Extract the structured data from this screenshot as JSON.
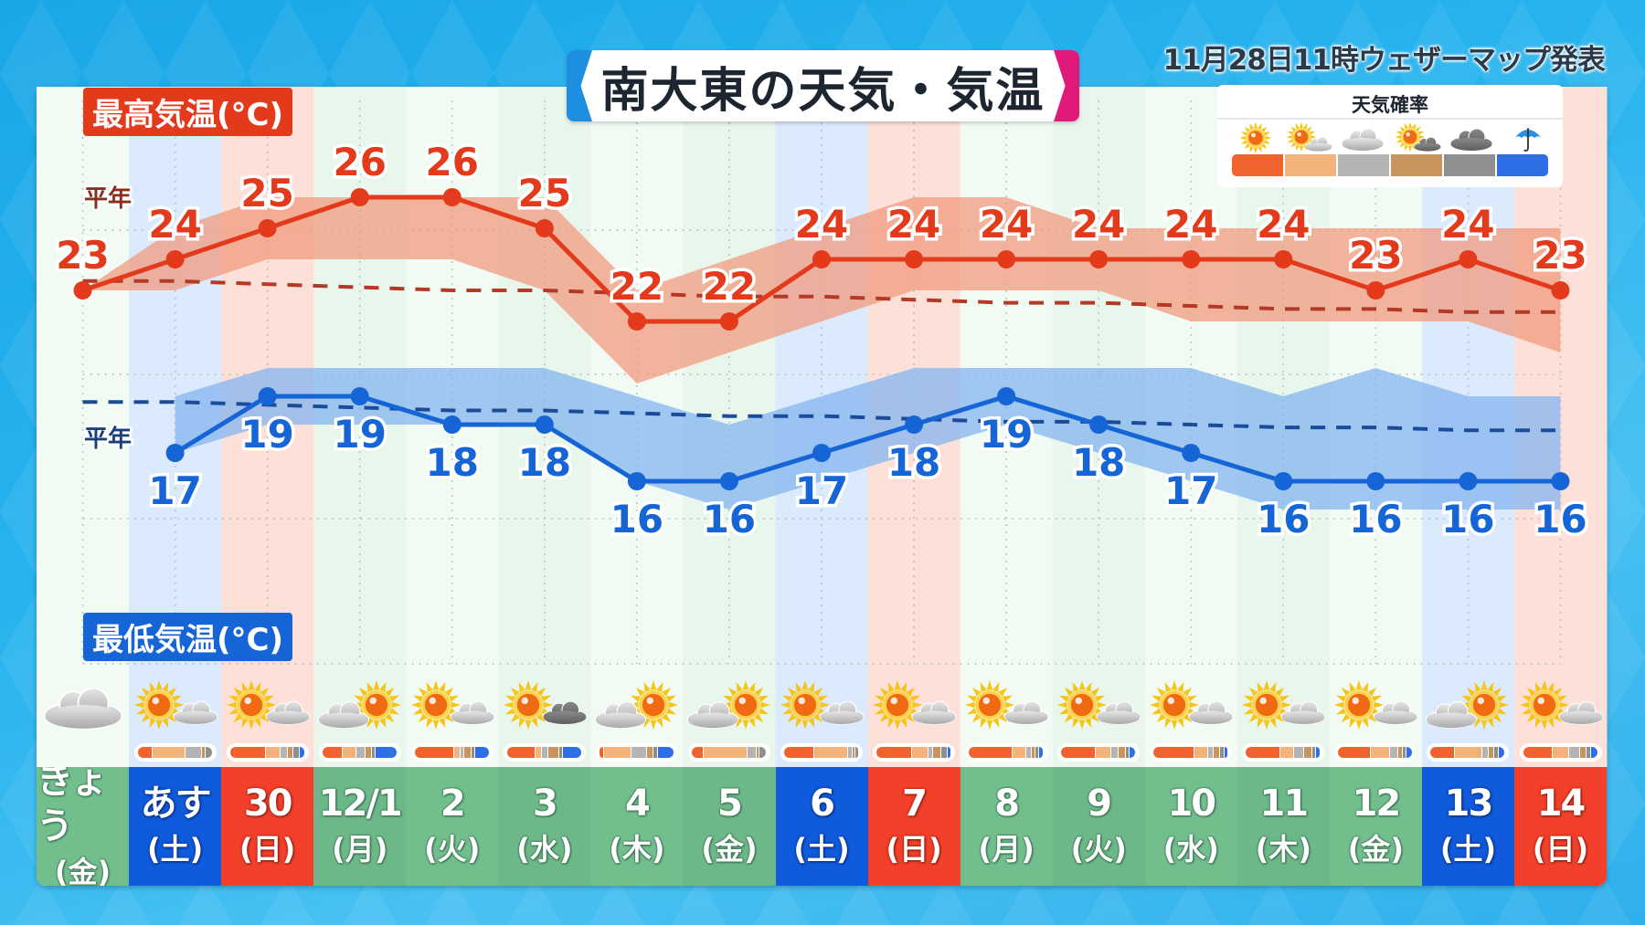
{
  "header": {
    "title": "南大東の天気・気温",
    "issued": "11月28日11時ウェザーマップ発表"
  },
  "labels": {
    "max_temp": "最高気温(°C)",
    "min_temp": "最低気温(°C)",
    "normal_high": "平年",
    "normal_low": "平年"
  },
  "legend": {
    "title": "天気確率",
    "items": [
      {
        "icon": "sunny-icon",
        "label": "晴れ",
        "color": "#f0622e"
      },
      {
        "icon": "sunny-then-cloudy-icon",
        "label": "晴れ時々曇り",
        "color": "#f3b27a"
      },
      {
        "icon": "cloudy-icon",
        "label": "曇り",
        "color": "#b4b4b4"
      },
      {
        "icon": "sun-cloud-icon",
        "label": "晴れ一時曇り",
        "color": "#c9955e"
      },
      {
        "icon": "dark-cloud-icon",
        "label": "曇り(雨)",
        "color": "#8f8f8f"
      },
      {
        "icon": "umbrella-icon",
        "label": "雨",
        "color": "#2f6fe6"
      }
    ]
  },
  "colors": {
    "high": "#e43a1c",
    "high_band": "#f29b7f",
    "high_normal": "#b23a26",
    "low": "#1665d6",
    "low_band": "#84b6f0",
    "low_normal": "#1b4c9a",
    "weekday_cell": "#72bf8d",
    "saturday_cell": "#0f5bdc",
    "sunday_cell": "#f2402a",
    "saturday_tint": "#dbeafd",
    "sunday_tint": "#fde0d7",
    "panel_bg": "#f2fbf3"
  },
  "days": [
    {
      "date": "きょう",
      "weekday": "(金)",
      "type": "weekday",
      "weather": "cloudy",
      "high": 23,
      "low": null,
      "prob": [
        0,
        0,
        100,
        0,
        0,
        0
      ]
    },
    {
      "date": "あす",
      "weekday": "(土)",
      "type": "saturday",
      "weather": "sunny-then-cloudy",
      "high": 24,
      "low": 17,
      "prob": [
        20,
        45,
        22,
        4,
        9,
        0
      ]
    },
    {
      "date": "30",
      "weekday": "(日)",
      "type": "sunday",
      "weather": "sunny-then-cloudy",
      "high": 25,
      "low": 19,
      "prob": [
        50,
        20,
        10,
        6,
        8,
        6
      ]
    },
    {
      "date": "12/1",
      "weekday": "(月)",
      "type": "weekday",
      "weather": "cloudy-then-sunny",
      "high": 26,
      "low": 19,
      "prob": [
        28,
        18,
        12,
        8,
        4,
        30
      ]
    },
    {
      "date": "2",
      "weekday": "(火)",
      "type": "weekday",
      "weather": "sunny-then-cloudy",
      "high": 26,
      "low": 18,
      "prob": [
        55,
        8,
        5,
        8,
        4,
        20
      ]
    },
    {
      "date": "3",
      "weekday": "(水)",
      "type": "weekday",
      "weather": "sunny-then-dark-cloud",
      "high": 25,
      "low": 18,
      "prob": [
        40,
        8,
        8,
        14,
        4,
        26
      ]
    },
    {
      "date": "4",
      "weekday": "(木)",
      "type": "weekday",
      "weather": "cloudy-then-sunny",
      "high": 22,
      "low": 16,
      "prob": [
        6,
        38,
        20,
        8,
        6,
        22
      ]
    },
    {
      "date": "5",
      "weekday": "(金)",
      "type": "weekday",
      "weather": "cloudy-then-sunny",
      "high": 22,
      "low": 16,
      "prob": [
        16,
        60,
        12,
        3,
        9,
        0
      ]
    },
    {
      "date": "6",
      "weekday": "(土)",
      "type": "saturday",
      "weather": "sunny-then-cloudy",
      "high": 24,
      "low": 17,
      "prob": [
        42,
        46,
        5,
        3,
        4,
        0
      ]
    },
    {
      "date": "7",
      "weekday": "(日)",
      "type": "sunday",
      "weather": "sunny-then-cloudy",
      "high": 24,
      "low": 18,
      "prob": [
        50,
        22,
        6,
        10,
        8,
        4
      ]
    },
    {
      "date": "8",
      "weekday": "(月)",
      "type": "weekday",
      "weather": "sunny-then-cloudy",
      "high": 24,
      "low": 19,
      "prob": [
        62,
        18,
        6,
        4,
        4,
        6
      ]
    },
    {
      "date": "9",
      "weekday": "(火)",
      "type": "weekday",
      "weather": "sunny-then-cloudy",
      "high": 24,
      "low": 18,
      "prob": [
        48,
        22,
        8,
        10,
        4,
        8
      ]
    },
    {
      "date": "10",
      "weekday": "(水)",
      "type": "weekday",
      "weather": "sunny-then-cloudy",
      "high": 24,
      "low": 17,
      "prob": [
        58,
        18,
        6,
        8,
        6,
        4
      ]
    },
    {
      "date": "11",
      "weekday": "(木)",
      "type": "weekday",
      "weather": "sunny-then-cloudy",
      "high": 24,
      "low": 16,
      "prob": [
        48,
        18,
        14,
        10,
        4,
        6
      ]
    },
    {
      "date": "12",
      "weekday": "(金)",
      "type": "weekday",
      "weather": "sunny-then-cloudy",
      "high": 23,
      "low": 16,
      "prob": [
        46,
        26,
        10,
        6,
        4,
        8
      ]
    },
    {
      "date": "13",
      "weekday": "(土)",
      "type": "saturday",
      "weather": "cloudy-then-sunny",
      "high": 24,
      "low": 16,
      "prob": [
        34,
        38,
        8,
        6,
        6,
        8
      ]
    },
    {
      "date": "14",
      "weekday": "(日)",
      "type": "sunday",
      "weather": "sunny-then-cloudy",
      "high": 23,
      "low": 16,
      "prob": [
        42,
        22,
        14,
        8,
        6,
        8
      ]
    }
  ],
  "chart_data": {
    "type": "line",
    "title": "南大東の天気・気温",
    "subtitle": "11月28日11時ウェザーマップ発表",
    "categories": [
      "きょう(金)",
      "あす(土)",
      "30(日)",
      "12/1(月)",
      "2(火)",
      "3(水)",
      "4(木)",
      "5(金)",
      "6(土)",
      "7(日)",
      "8(月)",
      "9(火)",
      "10(水)",
      "11(木)",
      "12(金)",
      "13(土)",
      "14(日)"
    ],
    "series": [
      {
        "name": "最高気温(°C)",
        "values": [
          23,
          24,
          25,
          26,
          26,
          25,
          22,
          22,
          24,
          24,
          24,
          24,
          24,
          24,
          23,
          24,
          23
        ],
        "range_upper": [
          23,
          25,
          26,
          26,
          26,
          26,
          23,
          24,
          25,
          26,
          26,
          25,
          25,
          25,
          25,
          25,
          25
        ],
        "range_lower": [
          23,
          23,
          24,
          24,
          24,
          23,
          20,
          21,
          22,
          23,
          23,
          23,
          22,
          22,
          22,
          22,
          21
        ]
      },
      {
        "name": "最低気温(°C)",
        "values": [
          null,
          17,
          19,
          19,
          18,
          18,
          16,
          16,
          17,
          18,
          19,
          18,
          17,
          16,
          16,
          16,
          16
        ],
        "range_upper": [
          null,
          19,
          20,
          20,
          20,
          20,
          19,
          18,
          19,
          20,
          20,
          20,
          20,
          19,
          20,
          19,
          19
        ],
        "range_lower": [
          null,
          17,
          18,
          18,
          18,
          18,
          16,
          15,
          16,
          17,
          18,
          17,
          16,
          15,
          15,
          15,
          15
        ]
      },
      {
        "name": "平年(最高)",
        "values": [
          23.3,
          23.3,
          23.2,
          23.1,
          23.0,
          23.0,
          22.9,
          22.8,
          22.8,
          22.7,
          22.6,
          22.6,
          22.5,
          22.4,
          22.4,
          22.3,
          22.3
        ]
      },
      {
        "name": "平年(最低)",
        "values": [
          18.8,
          18.8,
          18.7,
          18.6,
          18.5,
          18.5,
          18.4,
          18.3,
          18.3,
          18.2,
          18.1,
          18.1,
          18.0,
          17.9,
          17.9,
          17.8,
          17.8
        ]
      }
    ],
    "xlabel": "",
    "ylabel": "気温(°C)",
    "grid": true,
    "legend_position": "top-right"
  }
}
